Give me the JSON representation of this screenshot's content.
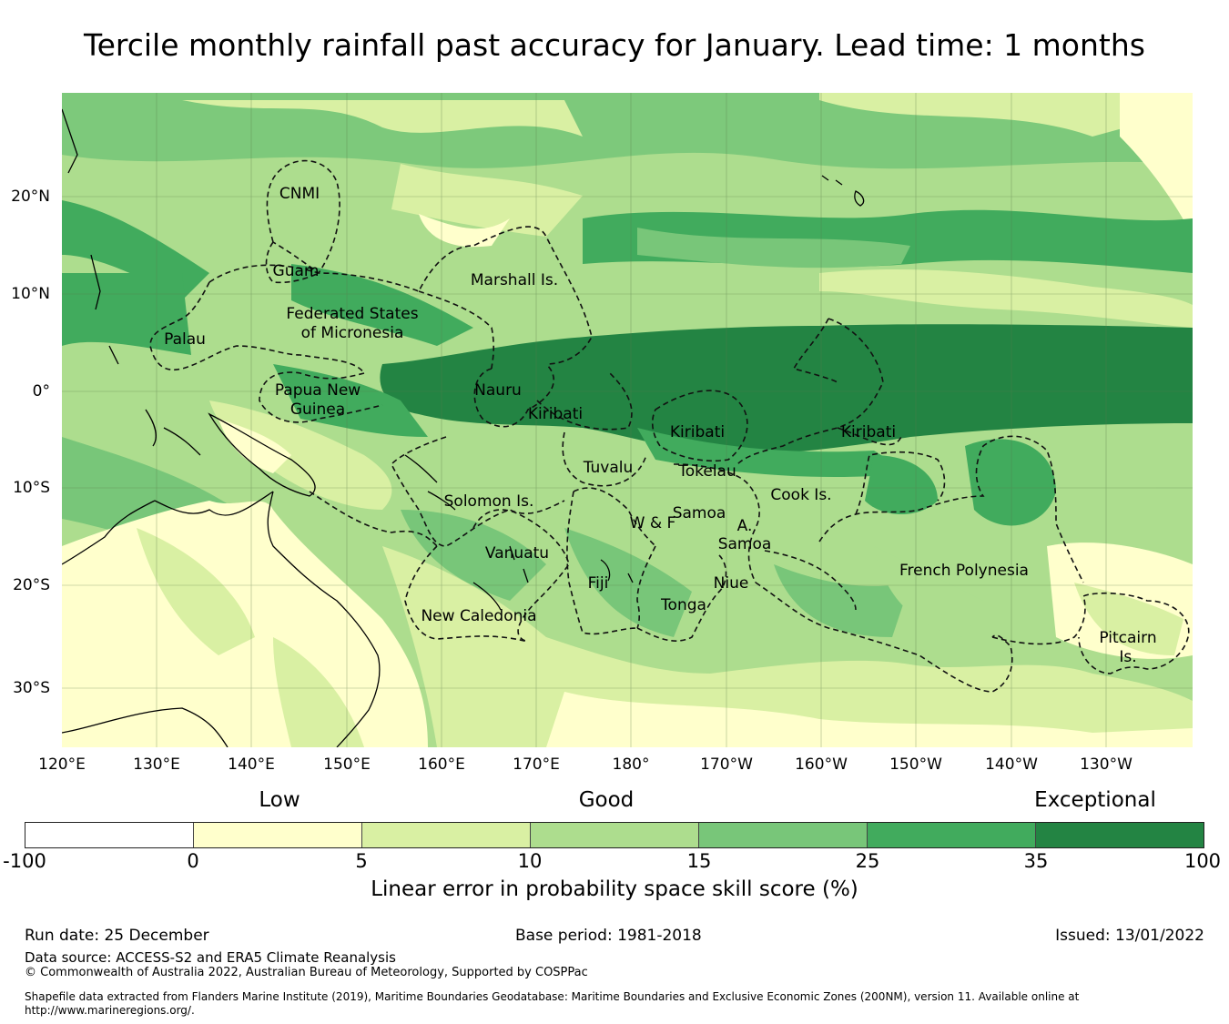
{
  "title": "Tercile monthly rainfall past accuracy for January. Lead time: 1 months",
  "map": {
    "lon_labels": [
      "120°E",
      "130°E",
      "140°E",
      "150°E",
      "160°E",
      "170°E",
      "180°",
      "170°W",
      "160°W",
      "150°W",
      "140°W",
      "130°W"
    ],
    "lat_labels": [
      "20°N",
      "10°N",
      "0°",
      "10°S",
      "20°S",
      "30°S"
    ],
    "regions": [
      "CNMI",
      "Guam",
      "Marshall Is.",
      "Federated States",
      "of Micronesia",
      "Palau",
      "Papua New",
      "Guinea",
      "Nauru",
      "Kiribati",
      "Kiribati",
      "Kiribati",
      "Tuvalu",
      "Tokelau",
      "Cook Is.",
      "Solomon Is.",
      "Samoa",
      "W & F",
      "A.",
      "Samoa",
      "Vanuatu",
      "Fiji",
      "Niue",
      "Tonga",
      "French Polynesia",
      "New Caledonia",
      "Pitcairn",
      "Is."
    ]
  },
  "colorbar": {
    "categories": [
      "Low",
      "Good",
      "Exceptional"
    ],
    "ticks": [
      "-100",
      "0",
      "5",
      "10",
      "15",
      "25",
      "35",
      "100"
    ],
    "colors": [
      "#ffffff",
      "#ffffcc",
      "#d9f0a3",
      "#addd8e",
      "#78c679",
      "#41ab5d",
      "#238443"
    ],
    "label": "Linear error in probability space skill score (%)"
  },
  "footer": {
    "run_date": "Run date: 25 December",
    "base_period": "Base period: 1981-2018",
    "issued": "Issued: 13/01/2022",
    "data_source": "Data source: ACCESS-S2 and ERA5 Climate Reanalysis",
    "copyright": "© Commonwealth of Australia 2022, Australian Bureau of Meteorology, Supported by COSPPac",
    "shapefile_note": "Shapefile data extracted from Flanders Marine Institute (2019), Maritime Boundaries Geodatabase: Maritime Boundaries and Exclusive Economic Zones (200NM), version 11. Available online at http://www.marineregions.org/."
  }
}
